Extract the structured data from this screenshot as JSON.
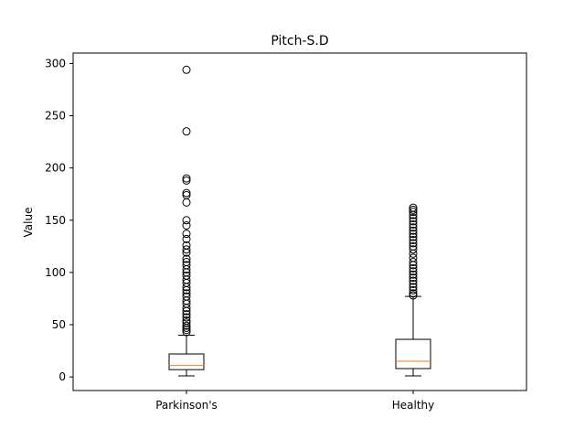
{
  "chart_data": {
    "type": "box",
    "title": "Pitch-S.D",
    "xlabel": "",
    "ylabel": "Value",
    "ylim": [
      -13,
      310
    ],
    "yticks": [
      0,
      50,
      100,
      150,
      200,
      250,
      300
    ],
    "grid": false,
    "categories": [
      "Parkinson's",
      "Healthy"
    ],
    "boxes": [
      {
        "name": "Parkinson's",
        "whisker_low": 1,
        "q1": 7,
        "median": 11,
        "q3": 22,
        "whisker_high": 40,
        "outliers": [
          294,
          235,
          190,
          188,
          176,
          174,
          167,
          150,
          145,
          137,
          132,
          126,
          122,
          119,
          113,
          110,
          107,
          103,
          100,
          97,
          93,
          90,
          86,
          83,
          80,
          77,
          73,
          70,
          66,
          63,
          60,
          57,
          54,
          52,
          49,
          47,
          45,
          43
        ]
      },
      {
        "name": "Healthy",
        "whisker_low": 1,
        "q1": 8,
        "median": 15,
        "q3": 36,
        "whisker_high": 77,
        "outliers": [
          162,
          160,
          158,
          155,
          152,
          149,
          146,
          143,
          140,
          137,
          134,
          131,
          128,
          125,
          122,
          118,
          114,
          110,
          107,
          104,
          101,
          98,
          95,
          92,
          89,
          86,
          83,
          80,
          78
        ]
      }
    ],
    "colors": {
      "box": "#000000",
      "median": "#ff7f0e",
      "outlier": "#000000"
    }
  }
}
